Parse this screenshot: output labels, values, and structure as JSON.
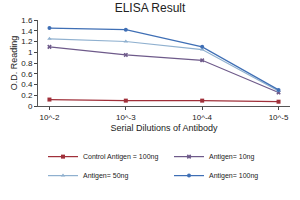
{
  "chart_data": {
    "type": "line",
    "title": "ELISA Result",
    "x_label": "Serial Dilutions of Antibody",
    "y_label": "O.D. Reading",
    "categories": [
      "10^-2",
      "10^-3",
      "10^-4",
      "10^-5"
    ],
    "series": [
      {
        "name": "Control Antigen = 100ng",
        "color": "#a0303a",
        "marker": "square",
        "values": [
          0.12,
          0.1,
          0.1,
          0.08
        ]
      },
      {
        "name": "Antigen= 10ng",
        "color": "#6e5a8a",
        "marker": "x",
        "values": [
          1.1,
          0.95,
          0.85,
          0.25
        ]
      },
      {
        "name": "Antigen= 50ng",
        "color": "#8fb0cf",
        "marker": "triangle-up",
        "values": [
          1.25,
          1.2,
          1.05,
          0.28
        ]
      },
      {
        "name": "Antigen= 100ng",
        "color": "#3f6fb5",
        "marker": "circle",
        "values": [
          1.45,
          1.42,
          1.1,
          0.3
        ]
      }
    ],
    "ylim": [
      0,
      1.6
    ],
    "yticks": [
      0,
      0.2,
      0.4,
      0.6,
      0.8,
      1,
      1.2,
      1.4,
      1.6
    ],
    "grid": false,
    "legend": "bottom"
  }
}
